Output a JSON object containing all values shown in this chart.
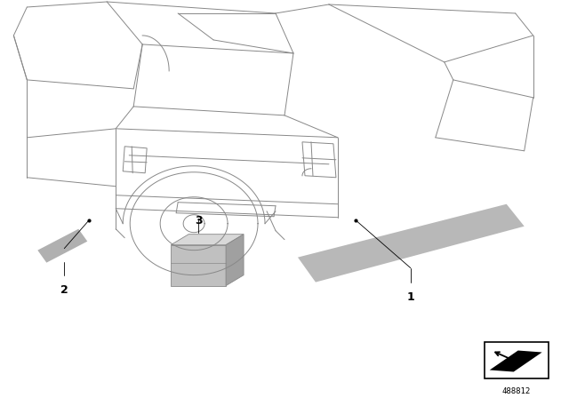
{
  "background_color": "#ffffff",
  "diagram_number": "488812",
  "car_line_color": "#888888",
  "car_lw": 0.7,
  "part_fill_1": "#b8b8b8",
  "part_fill_2": "#b0b0b0",
  "box_front": "#c0c0c0",
  "box_top": "#d8d8d8",
  "box_right": "#a0a0a0",
  "label_fontsize": 9,
  "diagram_fontsize": 6.5,
  "fig_width": 6.4,
  "fig_height": 4.48,
  "dpi": 100
}
